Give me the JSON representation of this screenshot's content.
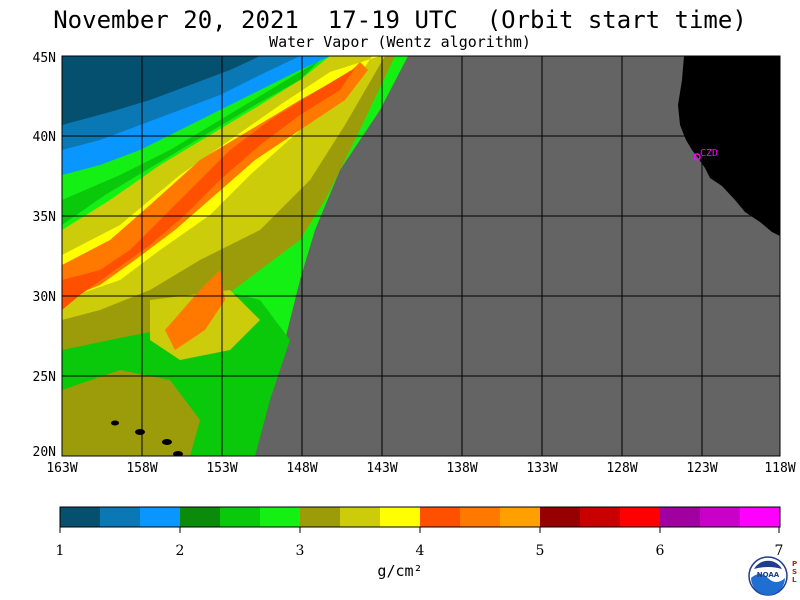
{
  "title": "November 20, 2021  17-19 UTC  (Orbit start time)",
  "subtitle": "Water Vapor (Wentz algorithm)",
  "lat_labels": [
    "45N",
    "40N",
    "35N",
    "30N",
    "25N",
    "20N"
  ],
  "lon_labels": [
    "163W",
    "158W",
    "153W",
    "148W",
    "143W",
    "138W",
    "133W",
    "128W",
    "123W",
    "118W"
  ],
  "station_label": "CZD",
  "colorbar": {
    "labels": [
      "1",
      "2",
      "3",
      "4",
      "5",
      "6",
      "7"
    ],
    "units": "g/cm²",
    "colors": [
      "#04506e",
      "#0a78b4",
      "#0a96ff",
      "#0a8c0a",
      "#0ac80a",
      "#14f014",
      "#9c9c0a",
      "#cccc0a",
      "#ffff00",
      "#ff5000",
      "#ff7800",
      "#ffa000",
      "#960000",
      "#c80000",
      "#ff0000",
      "#a000a0",
      "#c800c8",
      "#ff00ff"
    ]
  },
  "colors": {
    "no_data": "#646464",
    "land": "#000000",
    "station": "#ff00ff"
  },
  "logo_text": "NOAA",
  "logo_side_text": "PSL"
}
